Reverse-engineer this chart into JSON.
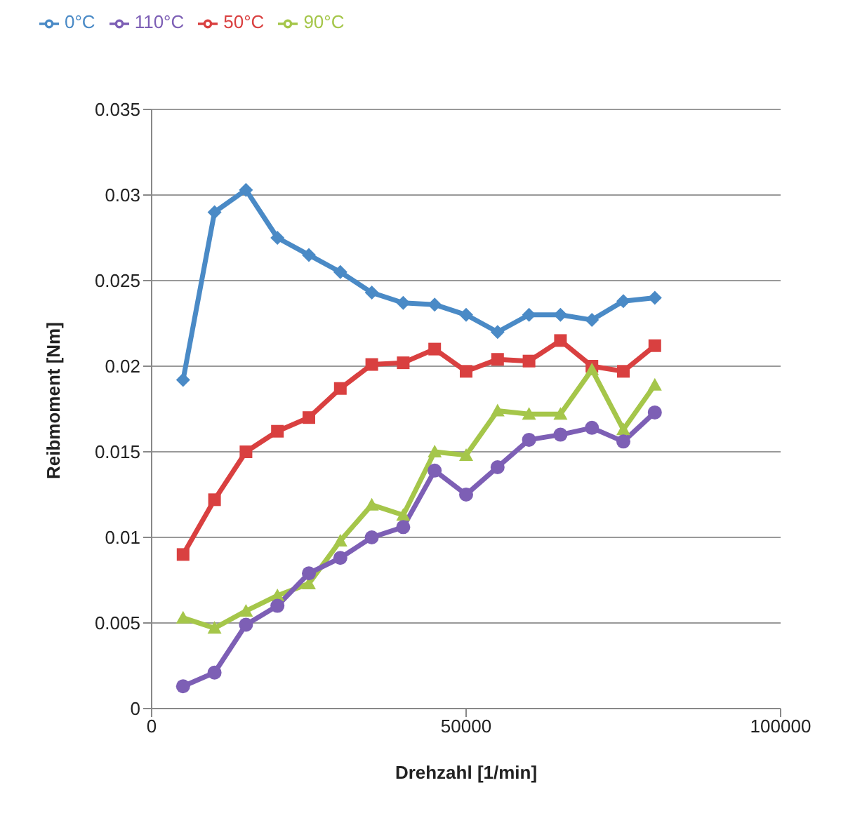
{
  "chart_data": {
    "type": "line",
    "xlabel": "Drehzahl [1/min]",
    "ylabel": "Reibmoment [Nm]",
    "x": [
      5000,
      10000,
      15000,
      20000,
      25000,
      30000,
      35000,
      40000,
      45000,
      50000,
      55000,
      60000,
      65000,
      70000,
      75000,
      80000
    ],
    "xlim": [
      0,
      100000
    ],
    "xticks": [
      0,
      50000,
      100000
    ],
    "ylim": [
      0,
      0.035
    ],
    "yticks": [
      0,
      0.005,
      0.01,
      0.015,
      0.02,
      0.025,
      0.03,
      0.035
    ],
    "grid": "y",
    "legend": "top",
    "series": [
      {
        "name": "0°C",
        "color": "#4a8ac6",
        "marker": "diamond",
        "values": [
          0.0192,
          0.029,
          0.0303,
          0.0275,
          0.0265,
          0.0255,
          0.0243,
          0.0237,
          0.0236,
          0.023,
          0.022,
          0.023,
          0.023,
          0.0227,
          0.0238,
          0.024
        ]
      },
      {
        "name": "50°C",
        "color": "#d94040",
        "marker": "square",
        "values": [
          0.009,
          0.0122,
          0.015,
          0.0162,
          0.017,
          0.0187,
          0.0201,
          0.0202,
          0.021,
          0.0197,
          0.0204,
          0.0203,
          0.0215,
          0.02,
          0.0197,
          0.0212
        ]
      },
      {
        "name": "90°C",
        "color": "#a5c64a",
        "marker": "triangle",
        "values": [
          0.0053,
          0.0047,
          0.0057,
          0.0066,
          0.0073,
          0.0098,
          0.0119,
          0.0113,
          0.015,
          0.0148,
          0.0174,
          0.0172,
          0.0172,
          0.0198,
          0.0163,
          0.0189
        ]
      },
      {
        "name": "110°C",
        "color": "#7d5fb5",
        "marker": "circle",
        "values": [
          0.0013,
          0.0021,
          0.0049,
          0.006,
          0.0079,
          0.0088,
          0.01,
          0.0106,
          0.0139,
          0.0125,
          0.0141,
          0.0157,
          0.016,
          0.0164,
          0.0156,
          0.0173
        ]
      }
    ]
  }
}
